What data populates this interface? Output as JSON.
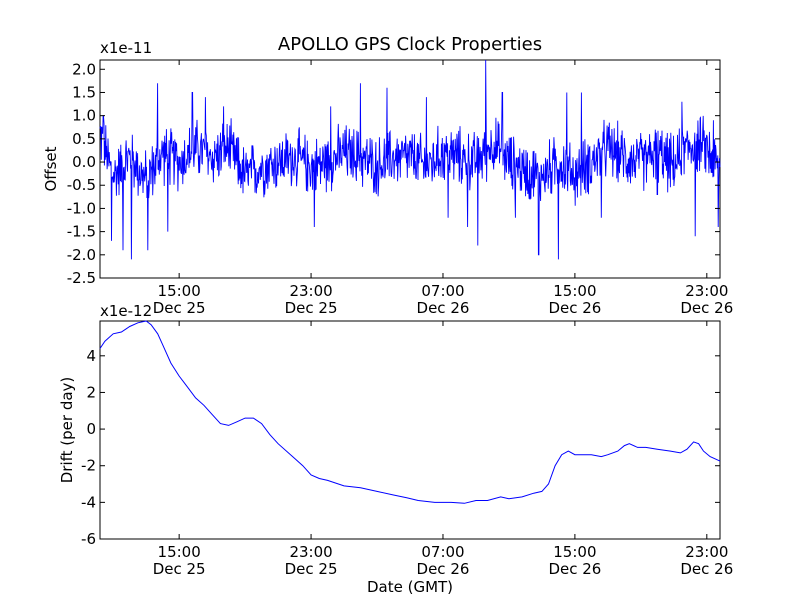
{
  "title": "APOLLO GPS Clock Properties",
  "colors": {
    "line": "#0000ff",
    "axes": "#000000",
    "background": "#ffffff"
  },
  "chart_data": [
    {
      "type": "line",
      "id": "offset",
      "ylabel": "Offset",
      "xlabel": "",
      "scale_label": "x1e-11",
      "ylim": [
        -2.5,
        2.2
      ],
      "yticks": [
        {
          "value": 2.0,
          "label": "2.0"
        },
        {
          "value": 1.5,
          "label": "1.5"
        },
        {
          "value": 1.0,
          "label": "1.0"
        },
        {
          "value": 0.5,
          "label": "0.5"
        },
        {
          "value": 0.0,
          "label": "0.0"
        },
        {
          "value": -0.5,
          "label": "-0.5"
        },
        {
          "value": -1.0,
          "label": "-1.0"
        },
        {
          "value": -1.5,
          "label": "-1.5"
        },
        {
          "value": -2.0,
          "label": "-2.0"
        },
        {
          "value": -2.5,
          "label": "-2.5"
        }
      ],
      "xlim_hours": [
        10.2,
        47.8
      ],
      "xticks": [
        {
          "hour": 15,
          "time": "15:00",
          "date": "Dec 25"
        },
        {
          "hour": 23,
          "time": "23:00",
          "date": "Dec 25"
        },
        {
          "hour": 31,
          "time": "07:00",
          "date": "Dec 26"
        },
        {
          "hour": 39,
          "time": "15:00",
          "date": "Dec 26"
        },
        {
          "hour": 47,
          "time": "23:00",
          "date": "Dec 26"
        }
      ],
      "series": [
        {
          "name": "offset",
          "envelope_note": "noisy series around zero; values approximate",
          "baseline": [
            [
              10.2,
              0.6
            ],
            [
              11,
              -0.3
            ],
            [
              12,
              0.1
            ],
            [
              13,
              -0.4
            ],
            [
              14,
              0.2
            ],
            [
              15,
              0.0
            ],
            [
              16,
              0.3
            ],
            [
              17,
              0.1
            ],
            [
              18,
              0.3
            ],
            [
              19,
              -0.3
            ],
            [
              20,
              -0.1
            ],
            [
              21,
              0.0
            ],
            [
              22,
              0.1
            ],
            [
              23,
              -0.1
            ],
            [
              24,
              0.0
            ],
            [
              25,
              0.2
            ],
            [
              26,
              0.1
            ],
            [
              27,
              -0.1
            ],
            [
              28,
              0.1
            ],
            [
              29,
              0.1
            ],
            [
              30,
              -0.1
            ],
            [
              31,
              0.2
            ],
            [
              32,
              0.1
            ],
            [
              33,
              0.0
            ],
            [
              34,
              0.4
            ],
            [
              35,
              0.0
            ],
            [
              36,
              -0.2
            ],
            [
              37,
              -0.3
            ],
            [
              38,
              0.0
            ],
            [
              39,
              -0.3
            ],
            [
              40,
              0.0
            ],
            [
              41,
              0.3
            ],
            [
              42,
              0.1
            ],
            [
              43,
              0.0
            ],
            [
              44,
              0.2
            ],
            [
              45,
              -0.1
            ],
            [
              46,
              0.4
            ],
            [
              47,
              0.3
            ],
            [
              47.8,
              -0.2
            ]
          ],
          "peaks": [
            [
              10.4,
              1.0
            ],
            [
              10.9,
              -1.7
            ],
            [
              11.6,
              -1.9
            ],
            [
              12.1,
              -2.1
            ],
            [
              13.1,
              -1.9
            ],
            [
              13.7,
              1.7
            ],
            [
              14.3,
              -1.5
            ],
            [
              15.8,
              1.5
            ],
            [
              16.6,
              1.4
            ],
            [
              17.7,
              1.2
            ],
            [
              23.2,
              -1.4
            ],
            [
              24.2,
              1.2
            ],
            [
              26.0,
              1.7
            ],
            [
              27.6,
              1.6
            ],
            [
              30.0,
              1.4
            ],
            [
              31.3,
              -1.2
            ],
            [
              32.5,
              -1.4
            ],
            [
              33.1,
              -1.8
            ],
            [
              33.6,
              2.2
            ],
            [
              34.6,
              1.5
            ],
            [
              35.4,
              -1.2
            ],
            [
              36.8,
              -2.0
            ],
            [
              38.0,
              -2.1
            ],
            [
              38.5,
              1.5
            ],
            [
              39.4,
              1.5
            ],
            [
              40.6,
              -1.2
            ],
            [
              44.0,
              -0.7
            ],
            [
              45.5,
              1.3
            ],
            [
              46.3,
              -1.6
            ],
            [
              47.4,
              0.9
            ],
            [
              47.7,
              -1.4
            ]
          ],
          "noise_amplitude": 0.55
        }
      ]
    },
    {
      "type": "line",
      "id": "drift",
      "ylabel": "Drift (per day)",
      "xlabel": "Date (GMT)",
      "scale_label": "x1e-12",
      "ylim": [
        -6,
        5.9
      ],
      "yticks": [
        {
          "value": 4,
          "label": "4"
        },
        {
          "value": 2,
          "label": "2"
        },
        {
          "value": 0,
          "label": "0"
        },
        {
          "value": -2,
          "label": "-2"
        },
        {
          "value": -4,
          "label": "-4"
        },
        {
          "value": -6,
          "label": "-6"
        }
      ],
      "xlim_hours": [
        10.2,
        47.8
      ],
      "xticks": [
        {
          "hour": 15,
          "time": "15:00",
          "date": "Dec 25"
        },
        {
          "hour": 23,
          "time": "23:00",
          "date": "Dec 25"
        },
        {
          "hour": 31,
          "time": "07:00",
          "date": "Dec 26"
        },
        {
          "hour": 39,
          "time": "15:00",
          "date": "Dec 26"
        },
        {
          "hour": 47,
          "time": "23:00",
          "date": "Dec 26"
        }
      ],
      "series": [
        {
          "name": "drift",
          "points": [
            [
              10.2,
              4.4
            ],
            [
              10.5,
              4.8
            ],
            [
              11.0,
              5.2
            ],
            [
              11.5,
              5.3
            ],
            [
              12.0,
              5.6
            ],
            [
              12.5,
              5.8
            ],
            [
              13.0,
              5.9
            ],
            [
              13.3,
              5.7
            ],
            [
              13.7,
              5.2
            ],
            [
              14.0,
              4.6
            ],
            [
              14.5,
              3.6
            ],
            [
              15.0,
              2.9
            ],
            [
              15.5,
              2.3
            ],
            [
              16.0,
              1.7
            ],
            [
              16.5,
              1.3
            ],
            [
              17.0,
              0.8
            ],
            [
              17.5,
              0.3
            ],
            [
              18.0,
              0.2
            ],
            [
              18.5,
              0.4
            ],
            [
              19.0,
              0.6
            ],
            [
              19.5,
              0.6
            ],
            [
              20.0,
              0.3
            ],
            [
              20.5,
              -0.3
            ],
            [
              21.0,
              -0.8
            ],
            [
              22.0,
              -1.6
            ],
            [
              22.5,
              -2.0
            ],
            [
              23.0,
              -2.5
            ],
            [
              23.5,
              -2.7
            ],
            [
              24.0,
              -2.8
            ],
            [
              25.0,
              -3.1
            ],
            [
              26.0,
              -3.2
            ],
            [
              27.0,
              -3.4
            ],
            [
              28.0,
              -3.6
            ],
            [
              28.8,
              -3.75
            ],
            [
              29.5,
              -3.9
            ],
            [
              30.5,
              -4.0
            ],
            [
              31.5,
              -4.0
            ],
            [
              32.3,
              -4.05
            ],
            [
              33.0,
              -3.9
            ],
            [
              33.7,
              -3.9
            ],
            [
              34.5,
              -3.7
            ],
            [
              35.0,
              -3.8
            ],
            [
              35.8,
              -3.7
            ],
            [
              36.5,
              -3.5
            ],
            [
              37.0,
              -3.4
            ],
            [
              37.4,
              -3.0
            ],
            [
              37.8,
              -2.0
            ],
            [
              38.2,
              -1.4
            ],
            [
              38.6,
              -1.2
            ],
            [
              39.0,
              -1.4
            ],
            [
              40.0,
              -1.4
            ],
            [
              40.6,
              -1.5
            ],
            [
              41.0,
              -1.4
            ],
            [
              41.6,
              -1.2
            ],
            [
              42.0,
              -0.9
            ],
            [
              42.3,
              -0.8
            ],
            [
              42.8,
              -1.0
            ],
            [
              43.3,
              -1.0
            ],
            [
              44.0,
              -1.1
            ],
            [
              44.8,
              -1.2
            ],
            [
              45.4,
              -1.3
            ],
            [
              45.8,
              -1.1
            ],
            [
              46.2,
              -0.7
            ],
            [
              46.5,
              -0.8
            ],
            [
              46.8,
              -1.2
            ],
            [
              47.2,
              -1.5
            ],
            [
              47.8,
              -1.75
            ]
          ]
        }
      ]
    }
  ]
}
